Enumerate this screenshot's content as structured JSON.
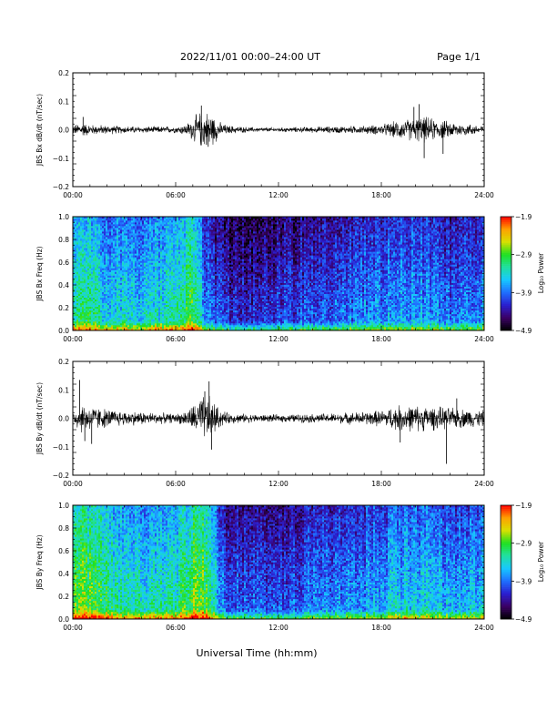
{
  "header": {
    "title": "2022/11/01  00:00–24:00 UT",
    "page": "Page 1/1"
  },
  "xlabel": "Universal Time (hh:mm)",
  "colors": {
    "line": "#000000",
    "colormap": [
      "#000000",
      "#3b0066",
      "#2a1fd0",
      "#1f6fff",
      "#17c8ff",
      "#20e0a0",
      "#20e020",
      "#d8e000",
      "#ffa000",
      "#ff0000"
    ]
  },
  "chart_data": [
    {
      "type": "line",
      "id": "bx_time_series",
      "ylabel": "JBS Bx dB/dt (nT/sec)",
      "ylim": [
        -0.2,
        0.2
      ],
      "yticks": [
        {
          "v": 0.2,
          "label": "0.2"
        },
        {
          "v": 0.1,
          "label": "0.1"
        },
        {
          "v": 0.0,
          "label": "0.0"
        },
        {
          "v": -0.1,
          "label": "−0.1"
        },
        {
          "v": -0.2,
          "label": "−0.2"
        }
      ],
      "xlim": [
        0,
        24
      ],
      "xticks": [
        {
          "v": 0,
          "label": "00:00"
        },
        {
          "v": 6,
          "label": "06:00"
        },
        {
          "v": 12,
          "label": "12:00"
        },
        {
          "v": 18,
          "label": "18:00"
        },
        {
          "v": 24,
          "label": "24:00"
        }
      ],
      "envelope": {
        "x_hours": [
          0,
          0.5,
          1,
          2,
          3,
          4,
          5,
          6,
          6.6,
          7,
          7.3,
          7.6,
          8,
          8.3,
          8.6,
          9,
          10,
          11,
          12,
          13,
          14,
          15,
          16,
          17,
          18,
          18.6,
          19,
          19.5,
          20,
          20.5,
          21,
          21.5,
          22,
          23,
          24
        ],
        "amplitude": [
          0.012,
          0.02,
          0.014,
          0.012,
          0.01,
          0.009,
          0.009,
          0.009,
          0.015,
          0.03,
          0.045,
          0.05,
          0.05,
          0.035,
          0.02,
          0.012,
          0.008,
          0.006,
          0.006,
          0.007,
          0.008,
          0.009,
          0.01,
          0.011,
          0.014,
          0.02,
          0.025,
          0.028,
          0.032,
          0.035,
          0.03,
          0.026,
          0.022,
          0.016,
          0.012
        ]
      },
      "spikes": [
        {
          "x": 0.6,
          "y": 0.045
        },
        {
          "x": 7.5,
          "y": 0.085
        },
        {
          "x": 7.9,
          "y": -0.06
        },
        {
          "x": 19.9,
          "y": 0.08
        },
        {
          "x": 20.2,
          "y": 0.09
        },
        {
          "x": 20.5,
          "y": -0.1
        },
        {
          "x": 21.6,
          "y": -0.085
        }
      ]
    },
    {
      "type": "heatmap",
      "id": "bx_spectrogram",
      "ylabel": "JBS Bx Freq (Hz)",
      "ylim": [
        0.0,
        1.0
      ],
      "yticks": [
        {
          "v": 1.0,
          "label": "1.0"
        },
        {
          "v": 0.8,
          "label": "0.8"
        },
        {
          "v": 0.6,
          "label": "0.6"
        },
        {
          "v": 0.4,
          "label": "0.4"
        },
        {
          "v": 0.2,
          "label": "0.2"
        },
        {
          "v": 0.0,
          "label": "0.0"
        }
      ],
      "xlim": [
        0,
        24
      ],
      "xticks": [
        {
          "v": 0,
          "label": "00:00"
        },
        {
          "v": 6,
          "label": "06:00"
        },
        {
          "v": 12,
          "label": "12:00"
        },
        {
          "v": 18,
          "label": "18:00"
        },
        {
          "v": 24,
          "label": "24:00"
        }
      ],
      "colorbar": {
        "label": "Log₁₀ Power",
        "range": [
          -4.9,
          -1.9
        ],
        "ticks": [
          {
            "v": -1.9,
            "label": "−1.9"
          },
          {
            "v": -2.9,
            "label": "−2.9"
          },
          {
            "v": -3.9,
            "label": "−3.9"
          },
          {
            "v": -4.9,
            "label": "−4.9"
          }
        ]
      },
      "intensity_hours": [
        0,
        1,
        2,
        4,
        6,
        6.5,
        7,
        7.3,
        7.7,
        8.2,
        9,
        10,
        12,
        14,
        16,
        18,
        19,
        20,
        21,
        22,
        23,
        24
      ],
      "intensity_level": [
        0.55,
        0.55,
        0.45,
        0.45,
        0.48,
        0.55,
        0.6,
        0.55,
        0.35,
        0.25,
        0.2,
        0.18,
        0.22,
        0.26,
        0.3,
        0.34,
        0.36,
        0.36,
        0.34,
        0.28,
        0.3,
        0.36
      ]
    },
    {
      "type": "line",
      "id": "by_time_series",
      "ylabel": "JBS By dB/dt (nT/sec)",
      "ylim": [
        -0.2,
        0.2
      ],
      "yticks": [
        {
          "v": 0.2,
          "label": "0.2"
        },
        {
          "v": 0.1,
          "label": "0.1"
        },
        {
          "v": 0.0,
          "label": "0.0"
        },
        {
          "v": -0.1,
          "label": "−0.1"
        },
        {
          "v": -0.2,
          "label": "−0.2"
        }
      ],
      "xlim": [
        0,
        24
      ],
      "xticks": [
        {
          "v": 0,
          "label": "00:00"
        },
        {
          "v": 6,
          "label": "06:00"
        },
        {
          "v": 12,
          "label": "12:00"
        },
        {
          "v": 18,
          "label": "18:00"
        },
        {
          "v": 24,
          "label": "24:00"
        }
      ],
      "envelope": {
        "x_hours": [
          0,
          0.5,
          1,
          1.5,
          2,
          3,
          4,
          5,
          6,
          6.6,
          7,
          7.3,
          7.6,
          8,
          8.3,
          8.6,
          9,
          10,
          11,
          12,
          13,
          14,
          15,
          16,
          17,
          18,
          18.6,
          19,
          19.5,
          20,
          20.5,
          21,
          21.5,
          22,
          23,
          24
        ],
        "amplitude": [
          0.02,
          0.04,
          0.035,
          0.03,
          0.025,
          0.02,
          0.018,
          0.015,
          0.012,
          0.02,
          0.035,
          0.05,
          0.06,
          0.06,
          0.04,
          0.025,
          0.015,
          0.012,
          0.01,
          0.01,
          0.011,
          0.012,
          0.013,
          0.015,
          0.018,
          0.022,
          0.03,
          0.035,
          0.035,
          0.035,
          0.034,
          0.032,
          0.03,
          0.028,
          0.025,
          0.022
        ]
      },
      "spikes": [
        {
          "x": 0.4,
          "y": 0.135
        },
        {
          "x": 0.7,
          "y": -0.08
        },
        {
          "x": 1.1,
          "y": -0.09
        },
        {
          "x": 7.7,
          "y": 0.095
        },
        {
          "x": 7.95,
          "y": 0.13
        },
        {
          "x": 8.1,
          "y": -0.11
        },
        {
          "x": 19.1,
          "y": -0.085
        },
        {
          "x": 21.8,
          "y": -0.16
        },
        {
          "x": 22.4,
          "y": 0.07
        }
      ]
    },
    {
      "type": "heatmap",
      "id": "by_spectrogram",
      "ylabel": "JBS By Freq (Hz)",
      "ylim": [
        0.0,
        1.0
      ],
      "yticks": [
        {
          "v": 1.0,
          "label": "1.0"
        },
        {
          "v": 0.8,
          "label": "0.8"
        },
        {
          "v": 0.6,
          "label": "0.6"
        },
        {
          "v": 0.4,
          "label": "0.4"
        },
        {
          "v": 0.2,
          "label": "0.2"
        },
        {
          "v": 0.0,
          "label": "0.0"
        }
      ],
      "xlim": [
        0,
        24
      ],
      "xticks": [
        {
          "v": 0,
          "label": "00:00"
        },
        {
          "v": 6,
          "label": "06:00"
        },
        {
          "v": 12,
          "label": "12:00"
        },
        {
          "v": 18,
          "label": "18:00"
        },
        {
          "v": 24,
          "label": "24:00"
        }
      ],
      "colorbar": {
        "label": "Log₁₀ Power",
        "range": [
          -4.9,
          -1.9
        ],
        "ticks": [
          {
            "v": -1.9,
            "label": "−1.9"
          },
          {
            "v": -2.9,
            "label": "−2.9"
          },
          {
            "v": -3.9,
            "label": "−3.9"
          },
          {
            "v": -4.9,
            "label": "−4.9"
          }
        ]
      },
      "intensity_hours": [
        0,
        0.5,
        1,
        2,
        4,
        6,
        6.5,
        7,
        7.5,
        8,
        8.5,
        9,
        10,
        12,
        14,
        16,
        18,
        19,
        20,
        21,
        22,
        23,
        24
      ],
      "intensity_level": [
        0.62,
        0.7,
        0.62,
        0.55,
        0.5,
        0.5,
        0.58,
        0.66,
        0.68,
        0.58,
        0.4,
        0.3,
        0.26,
        0.26,
        0.3,
        0.34,
        0.38,
        0.42,
        0.44,
        0.42,
        0.38,
        0.38,
        0.42
      ]
    }
  ]
}
